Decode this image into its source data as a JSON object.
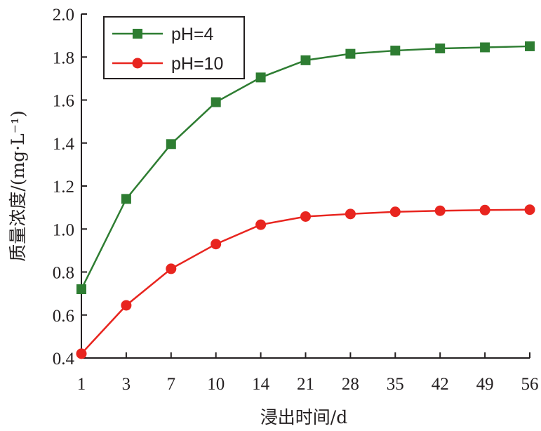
{
  "chart_data": {
    "type": "line",
    "categories": [
      "1",
      "3",
      "7",
      "10",
      "14",
      "21",
      "28",
      "35",
      "42",
      "49",
      "56"
    ],
    "series": [
      {
        "name": "pH=4",
        "color": "#2e7d32",
        "marker": "square",
        "values": [
          0.72,
          1.14,
          1.395,
          1.59,
          1.705,
          1.785,
          1.815,
          1.83,
          1.84,
          1.845,
          1.85
        ]
      },
      {
        "name": "pH=10",
        "color": "#e8251f",
        "marker": "circle",
        "values": [
          0.42,
          0.645,
          0.815,
          0.93,
          1.02,
          1.058,
          1.07,
          1.08,
          1.085,
          1.088,
          1.09
        ]
      }
    ],
    "xlabel": "浸出时间/d",
    "ylabel": "质量浓度/(mg·L⁻¹)",
    "ylim": [
      0.4,
      2.0
    ],
    "yticks": [
      "0.4",
      "0.6",
      "0.8",
      "1.0",
      "1.2",
      "1.4",
      "1.6",
      "1.8",
      "2.0"
    ],
    "grid": false,
    "legend_position": "top-left"
  }
}
